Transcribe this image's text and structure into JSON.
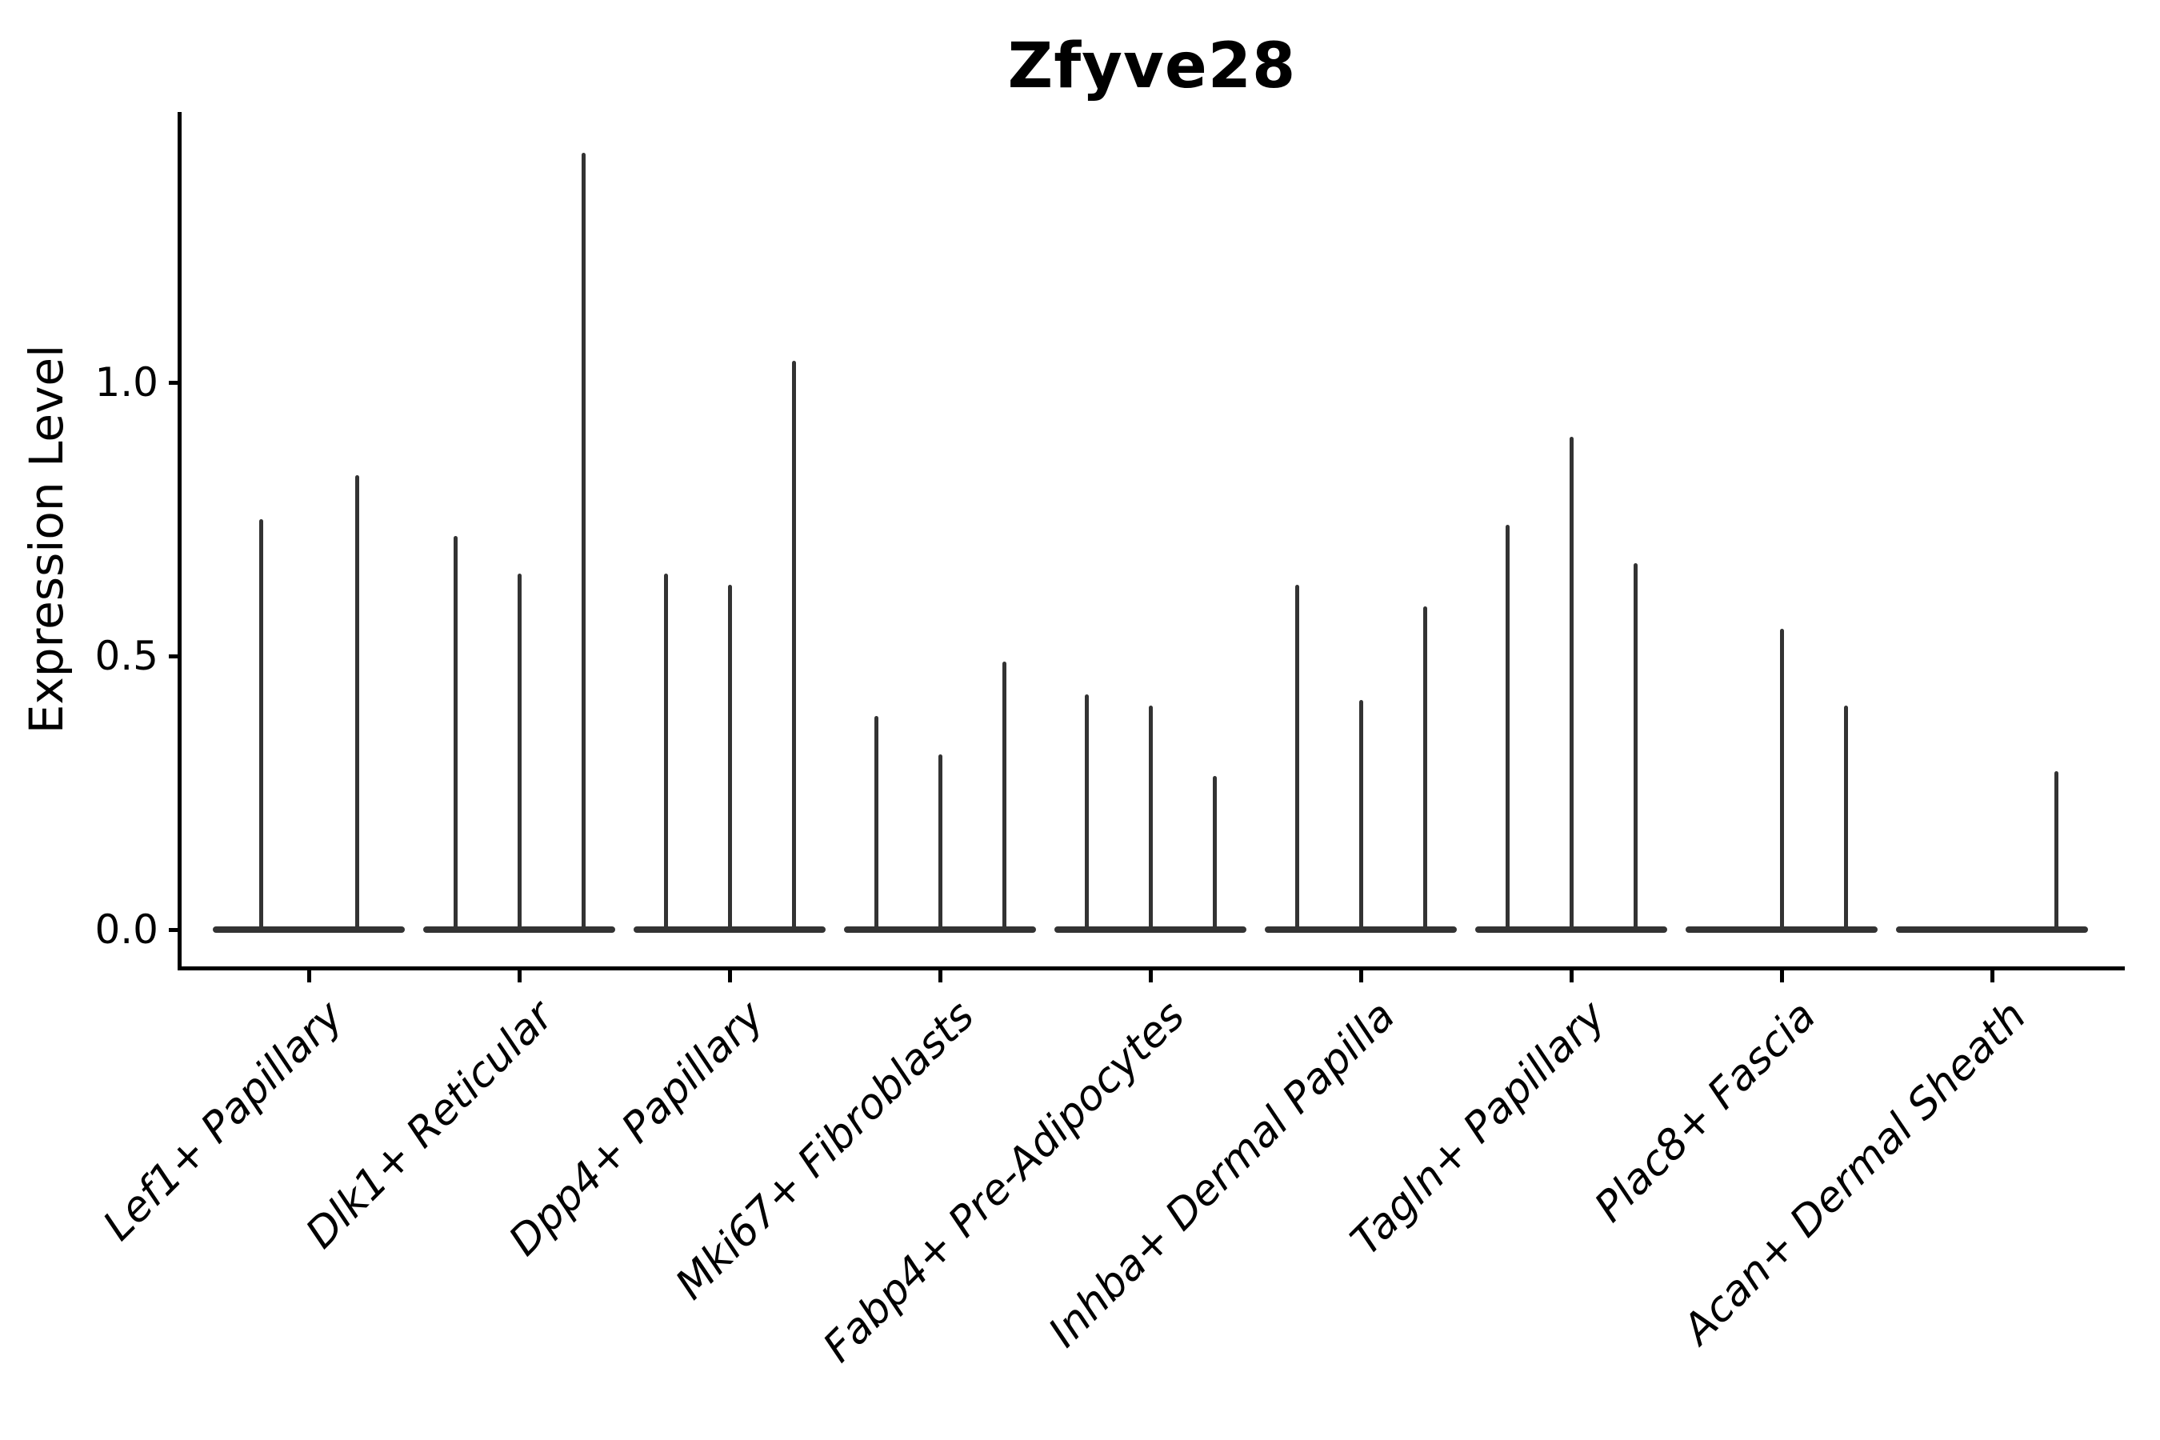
{
  "chart_data": {
    "type": "violin",
    "title": "Zfyve28",
    "ylabel": "Expression Level",
    "xlabel": "",
    "grid": false,
    "legend": "none",
    "ylim": [
      0,
      1.49
    ],
    "yticks": [
      {
        "label": "0.0",
        "value": 0.0
      },
      {
        "label": "0.5",
        "value": 0.5
      },
      {
        "label": "1.0",
        "value": 1.0
      }
    ],
    "categories": [
      "Lef1+ Papillary",
      "Dlk1+ Reticular",
      "Dpp4+ Papillary",
      "Mki67+ Fibroblasts",
      "Fabp4+ Pre-Adipocytes",
      "Inhba+ Dermal Papilla",
      "Tagln+ Papillary",
      "Plac8+ Fascia",
      "Acan+ Dermal Sheath"
    ],
    "violins": [
      {
        "category": "Lef1+ Papillary",
        "spike_max_expression": [
          0.75,
          0.83
        ]
      },
      {
        "category": "Dlk1+ Reticular",
        "spike_max_expression": [
          0.72,
          0.65,
          1.42
        ]
      },
      {
        "category": "Dpp4+ Papillary",
        "spike_max_expression": [
          0.65,
          0.63,
          1.04
        ]
      },
      {
        "category": "Mki67+ Fibroblasts",
        "spike_max_expression": [
          0.39,
          0.32,
          0.49
        ]
      },
      {
        "category": "Fabp4+ Pre-Adipocytes",
        "spike_max_expression": [
          0.43,
          0.41,
          0.28
        ]
      },
      {
        "category": "Inhba+ Dermal Papilla",
        "spike_max_expression": [
          0.63,
          0.42,
          0.59
        ]
      },
      {
        "category": "Tagln+ Papillary",
        "spike_max_expression": [
          0.74,
          0.9,
          0.67
        ]
      },
      {
        "category": "Plac8+ Fascia",
        "spike_max_expression": [
          0.0,
          0.55,
          0.41
        ]
      },
      {
        "category": "Acan+ Dermal Sheath",
        "spike_max_expression": [
          0.0,
          0.0,
          0.29
        ]
      }
    ],
    "colors": {
      "violin_stroke": "#333333",
      "axis": "#000000",
      "background": "#ffffff"
    }
  }
}
